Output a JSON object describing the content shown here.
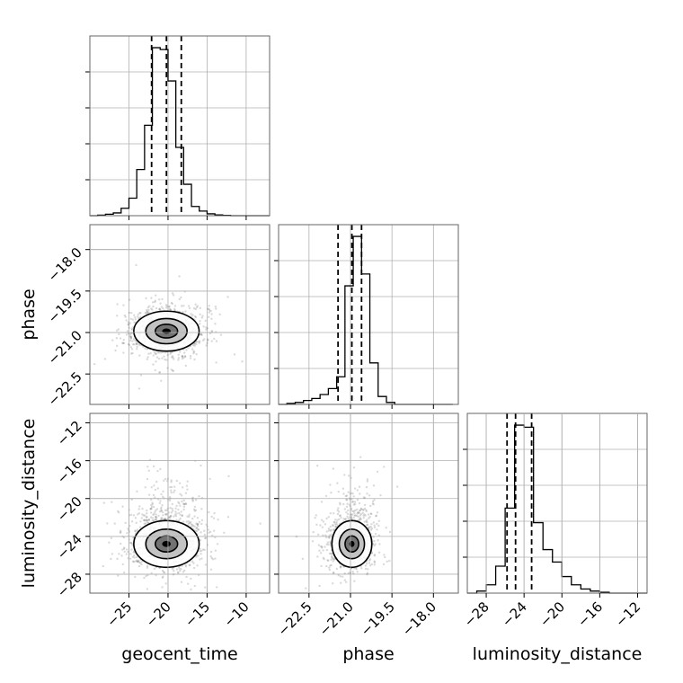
{
  "chart_data": {
    "type": "corner",
    "parameters": [
      {
        "key": "geocent_time",
        "label": "geocent_time",
        "range": [
          -30,
          -7
        ],
        "ticks": [
          -25,
          -20,
          -15,
          -10
        ],
        "tick_labels": [
          "−25",
          "−20",
          "−15",
          "−10"
        ],
        "mean": -20.2,
        "sd": 2.2,
        "quantiles": [
          -22.1,
          -20.2,
          -18.3
        ]
      },
      {
        "key": "phase",
        "label": "phase",
        "range": [
          -23.6,
          -17.1
        ],
        "ticks": [
          -22.5,
          -21.0,
          -19.5,
          -18.0
        ],
        "tick_labels": [
          "−22.5",
          "−21.0",
          "−19.5",
          "−18.0"
        ],
        "mean": -20.95,
        "sd": 0.38,
        "quantiles": [
          -21.45,
          -20.95,
          -20.6
        ]
      },
      {
        "key": "luminosity_distance",
        "label": "luminosity_distance",
        "range": [
          -30,
          -11
        ],
        "ticks": [
          -28,
          -24,
          -20,
          -16,
          -12
        ],
        "tick_labels": [
          "−28",
          "−24",
          "−20",
          "−16",
          "−12"
        ],
        "mean": -24.8,
        "sd": 1.3,
        "quantiles": [
          -25.8,
          -24.9,
          -23.2
        ]
      }
    ],
    "histograms": [
      {
        "param": "geocent_time",
        "edges": [
          -30,
          -29,
          -28,
          -27,
          -26,
          -25,
          -24,
          -23,
          -22,
          -21,
          -20,
          -19,
          -18,
          -17,
          -16,
          -15,
          -14,
          -13,
          -12,
          -11,
          -10,
          -9,
          -8,
          -7
        ],
        "counts": [
          0,
          0.3,
          0.8,
          1.5,
          4,
          9.5,
          25,
          49,
          91,
          90,
          73,
          37,
          17,
          5,
          2.5,
          1,
          0.4,
          0.2,
          0,
          0,
          0,
          0,
          0
        ]
      },
      {
        "param": "phase",
        "edges": [
          -23.6,
          -23.3,
          -23.0,
          -22.7,
          -22.4,
          -22.1,
          -21.8,
          -21.5,
          -21.2,
          -20.9,
          -20.6,
          -20.3,
          -20.0,
          -19.7,
          -19.4,
          -19.1,
          -18.8,
          -18.5,
          -18.2,
          -17.9,
          -17.6,
          -17.3
        ],
        "counts": [
          0,
          0.5,
          1,
          2,
          3,
          5,
          8,
          14,
          60,
          85,
          66,
          21,
          4,
          1,
          0,
          0,
          0,
          0,
          0,
          0,
          0
        ],
        "_scale": 0.95
      },
      {
        "param": "luminosity_distance",
        "edges": [
          -30,
          -29,
          -28,
          -27,
          -26,
          -25,
          -24,
          -23,
          -22,
          -21,
          -20,
          -19,
          -18,
          -17,
          -16,
          -15,
          -14,
          -13,
          -12,
          -11
        ],
        "counts": [
          0,
          0.5,
          2,
          6.5,
          20.5,
          40.5,
          40,
          17,
          10.5,
          7.5,
          4,
          2,
          1,
          0.5,
          0.2,
          0,
          0,
          0,
          0
        ]
      }
    ],
    "pairs": [
      {
        "x": "geocent_time",
        "y": "phase",
        "mean": [
          -20.2,
          -20.95
        ],
        "sd": [
          2.2,
          0.38
        ],
        "n": 1300
      },
      {
        "x": "geocent_time",
        "y": "luminosity_distance",
        "mean": [
          -20.2,
          -24.8
        ],
        "sd": [
          2.2,
          1.3
        ],
        "n": 1300
      },
      {
        "x": "phase",
        "y": "luminosity_distance",
        "mean": [
          -20.95,
          -24.8
        ],
        "sd": [
          0.38,
          1.3
        ],
        "n": 1100
      }
    ],
    "grid": true,
    "quantile_lines": "dashed"
  }
}
